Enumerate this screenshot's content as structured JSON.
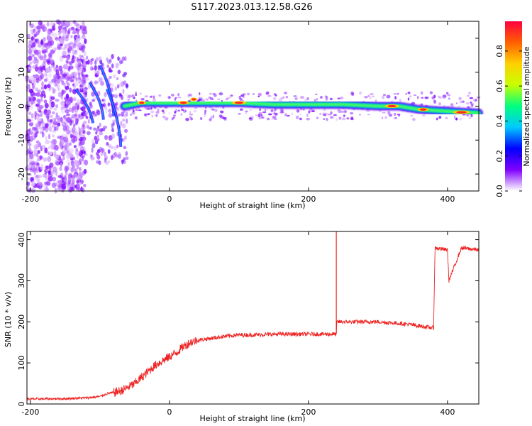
{
  "figure": {
    "title": "S117.2023.013.12.58.G26"
  },
  "chart_data": [
    {
      "type": "heatmap",
      "xlabel": "Height of straight line (km)",
      "ylabel": "Frequency (Hz)",
      "xlim": [
        -205,
        445
      ],
      "ylim": [
        -25,
        25
      ],
      "xticks": [
        -200,
        0,
        200,
        400
      ],
      "yticks": [
        -20,
        -10,
        0,
        10,
        20
      ],
      "colorbar": {
        "label": "Normalized spectral amplitude",
        "range": [
          0,
          0.97
        ],
        "ticks": [
          0.0,
          0.2,
          0.4,
          0.6,
          0.8
        ],
        "colors": [
          "#ffffff",
          "#8000ff",
          "#0000ff",
          "#00c8ff",
          "#00ff80",
          "#c8ff00",
          "#ffd000",
          "#ff6000",
          "#ff0040"
        ]
      },
      "ridge": {
        "x": [
          -65,
          -40,
          0,
          40,
          100,
          150,
          200,
          250,
          300,
          330,
          360,
          400,
          445
        ],
        "y": [
          0,
          1,
          1,
          1,
          1,
          0.5,
          0.5,
          0.5,
          0,
          0,
          -1,
          -1.5,
          -2
        ]
      },
      "grid": false,
      "legend": "none"
    },
    {
      "type": "line",
      "xlabel": "Height of straight line (km)",
      "ylabel": "SNR (10 * v/v)",
      "xlim": [
        -205,
        445
      ],
      "ylim": [
        0,
        420
      ],
      "xticks": [
        -200,
        0,
        200,
        400
      ],
      "yticks": [
        0,
        100,
        200,
        300,
        400
      ],
      "series": [
        {
          "color": "#ee2222",
          "x": [
            -205,
            -150,
            -120,
            -100,
            -90,
            -80,
            -70,
            -60,
            -50,
            -40,
            -30,
            -20,
            -10,
            0,
            10,
            20,
            30,
            40,
            60,
            80,
            100,
            120,
            150,
            180,
            200,
            220,
            240,
            241,
            260,
            300,
            340,
            380,
            382,
            400,
            402,
            420,
            445
          ],
          "y": [
            12,
            13,
            15,
            18,
            25,
            28,
            32,
            40,
            50,
            65,
            80,
            95,
            105,
            115,
            125,
            140,
            150,
            155,
            160,
            165,
            168,
            168,
            170,
            170,
            170,
            170,
            170,
            200,
            200,
            200,
            195,
            185,
            380,
            375,
            300,
            380,
            375
          ]
        }
      ],
      "grid": false,
      "legend": "none"
    }
  ]
}
